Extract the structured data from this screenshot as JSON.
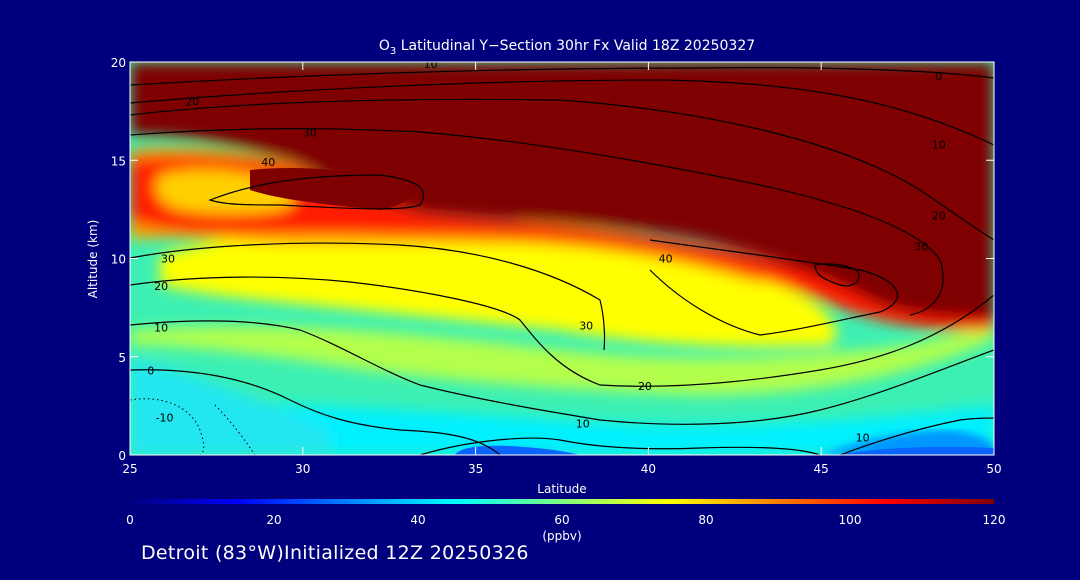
{
  "chart_data": {
    "type": "heatmap",
    "title_main": "O",
    "title_sub": "3",
    "title_rest": " Latitudinal Y−Section 30hr  Fx Valid 18Z 20250327",
    "xlabel": "Latitude",
    "ylabel": "Altitude (km)",
    "xlim": [
      25,
      50
    ],
    "ylim": [
      0,
      20
    ],
    "x_ticks": [
      "25",
      "30",
      "35",
      "40",
      "45",
      "50"
    ],
    "y_ticks": [
      "0",
      "5",
      "10",
      "15",
      "20"
    ],
    "colorbar": {
      "label": "(ppbv)",
      "range": [
        0,
        120
      ],
      "ticks": [
        "0",
        "20",
        "40",
        "60",
        "80",
        "100",
        "120"
      ],
      "colors": [
        "#00007f",
        "#0000ff",
        "#007fff",
        "#00ffff",
        "#7fff7f",
        "#ffff00",
        "#ff7f00",
        "#ff0000",
        "#7f0000"
      ]
    },
    "contour_labels": [
      {
        "text": "0",
        "lat": 48.4,
        "alt": 19.3
      },
      {
        "text": "10",
        "lat": 33.7,
        "alt": 19.9
      },
      {
        "text": "10",
        "lat": 48.4,
        "alt": 15.8
      },
      {
        "text": "20",
        "lat": 26.8,
        "alt": 18.0
      },
      {
        "text": "20",
        "lat": 48.4,
        "alt": 12.2
      },
      {
        "text": "30",
        "lat": 30.2,
        "alt": 16.4
      },
      {
        "text": "30",
        "lat": 47.9,
        "alt": 10.6
      },
      {
        "text": "40",
        "lat": 29.0,
        "alt": 14.9
      },
      {
        "text": "40",
        "lat": 40.5,
        "alt": 10.0
      },
      {
        "text": "30",
        "lat": 26.1,
        "alt": 10.0
      },
      {
        "text": "30",
        "lat": 38.2,
        "alt": 6.6
      },
      {
        "text": "20",
        "lat": 25.9,
        "alt": 8.6
      },
      {
        "text": "20",
        "lat": 39.9,
        "alt": 3.5
      },
      {
        "text": "10",
        "lat": 25.9,
        "alt": 6.5
      },
      {
        "text": "10",
        "lat": 38.1,
        "alt": 1.6
      },
      {
        "text": "10",
        "lat": 46.2,
        "alt": 0.9
      },
      {
        "text": "0",
        "lat": 25.6,
        "alt": 4.3
      },
      {
        "text": "-10",
        "lat": 26.0,
        "alt": 1.9
      }
    ]
  },
  "footer_text": "Detroit (83°W)Initialized 12Z 20250326"
}
